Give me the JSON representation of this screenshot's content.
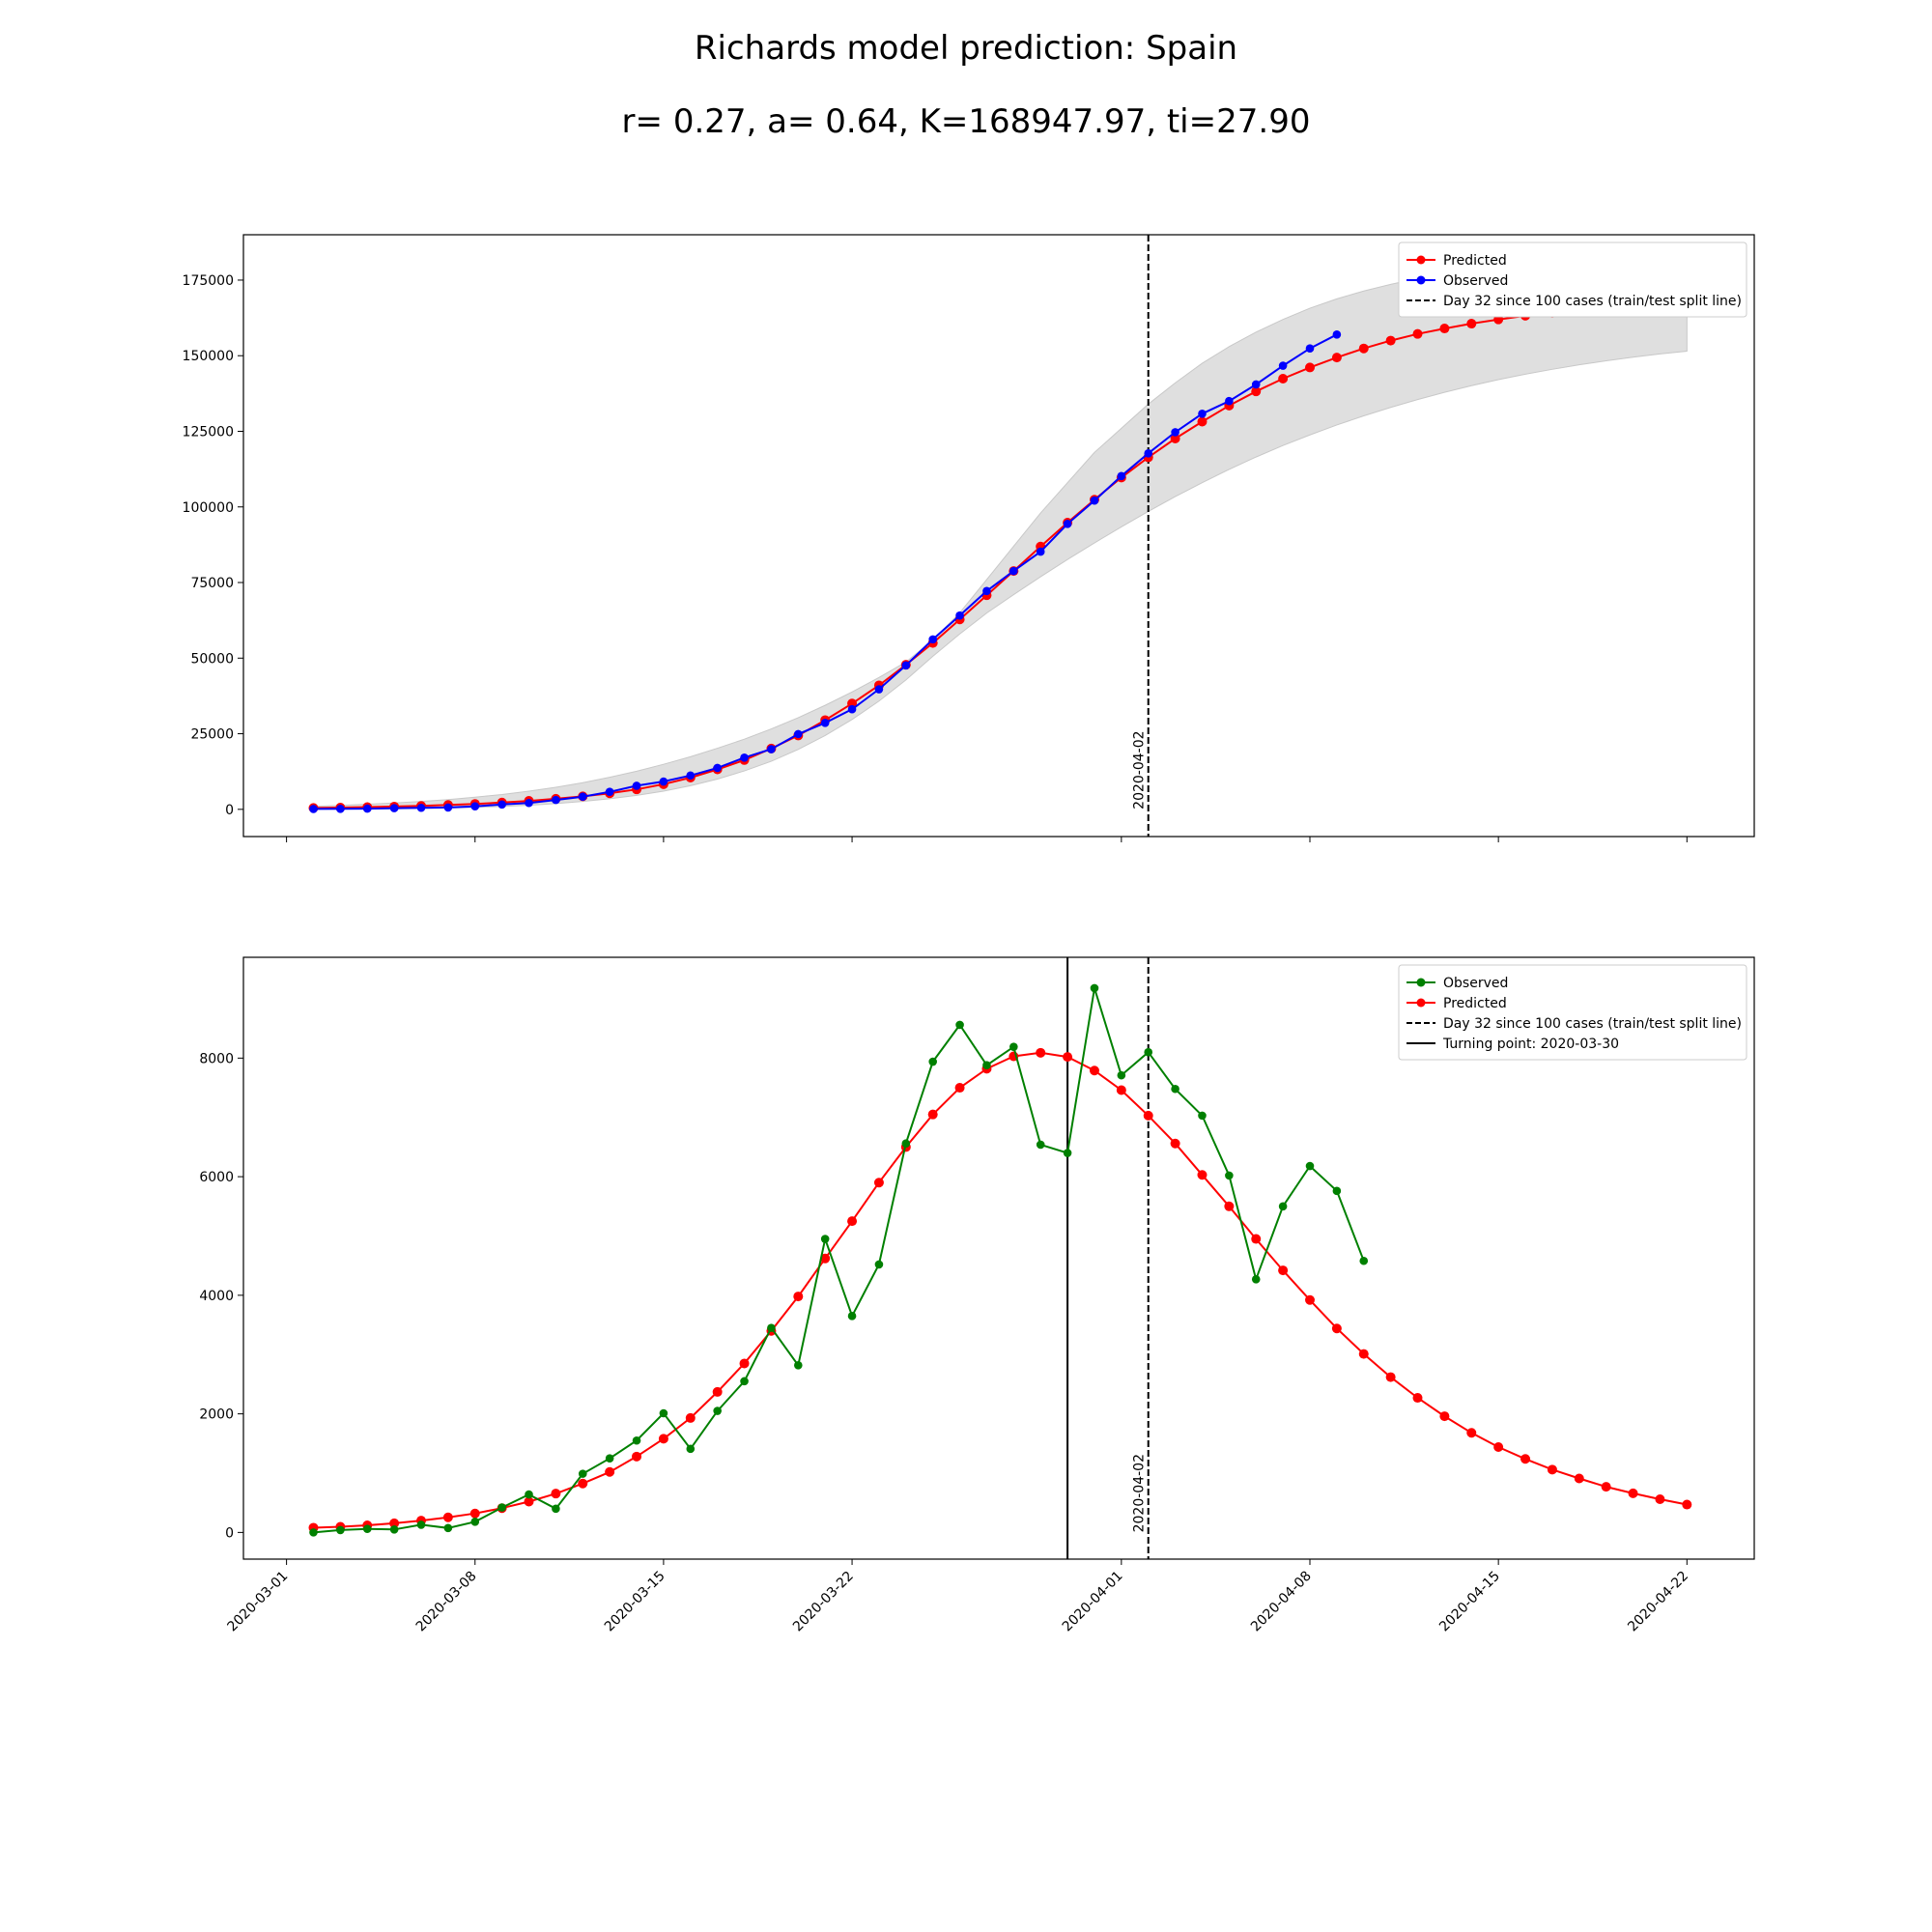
{
  "title": "Richards model prediction: Spain",
  "subtitle": "r= 0.27, a= 0.64, K=168947.97, ti=27.90",
  "colors": {
    "predicted": "#ff0000",
    "observed_top": "#0000ff",
    "observed_bottom": "#008000",
    "band": "#dcdcdc",
    "vline": "#000000"
  },
  "x_axis": {
    "start_date": "2020-03-01",
    "tick_labels": [
      "2020-03-01",
      "2020-03-08",
      "2020-03-15",
      "2020-03-22",
      "2020-04-01",
      "2020-04-08",
      "2020-04-15",
      "2020-04-22"
    ],
    "tick_days": [
      0,
      7,
      14,
      21,
      31,
      38,
      45,
      52
    ],
    "xlim_days": [
      -1.6,
      54.5
    ]
  },
  "chart_data": [
    {
      "type": "line",
      "panel": "top",
      "ylim": [
        -9000,
        190000
      ],
      "yticks": [
        0,
        25000,
        50000,
        75000,
        100000,
        125000,
        150000,
        175000
      ],
      "ytick_labels": [
        "0",
        "25000",
        "50000",
        "75000",
        "100000",
        "125000",
        "150000",
        "175000"
      ],
      "grid": false,
      "legend_position": "top-right",
      "legend": [
        "Predicted",
        "Observed",
        "Day 32 since 100 cases (train/test split line)"
      ],
      "vlines": [
        {
          "day": 32,
          "style": "dashed",
          "label": "2020-04-02"
        }
      ],
      "series": [
        {
          "name": "Predicted",
          "start_day": 1,
          "values": [
            460,
            580,
            730,
            920,
            1150,
            1450,
            1800,
            2250,
            2800,
            3500,
            4300,
            5300,
            6600,
            8300,
            10500,
            13200,
            16300,
            20100,
            24400,
            29500,
            35000,
            41000,
            47800,
            55000,
            62800,
            70800,
            78800,
            86900,
            94800,
            102400,
            109700,
            116400,
            122600,
            128200,
            133500,
            138200,
            142400,
            146100,
            149400,
            152400,
            155000,
            157200,
            159000,
            160600,
            162000,
            163200,
            164200,
            165100,
            165800,
            166400,
            166800,
            167100
          ]
        },
        {
          "name": "Observed",
          "start_day": 1,
          "values": [
            120,
            165,
            230,
            400,
            500,
            600,
            1000,
            1600,
            2100,
            3100,
            4200,
            5800,
            7800,
            9200,
            11200,
            13700,
            17100,
            19900,
            24900,
            28600,
            33100,
            39700,
            47600,
            56200,
            64100,
            72200,
            78800,
            85200,
            94400,
            102100,
            110200,
            117700,
            124700,
            130800,
            135000,
            140500,
            146700,
            152400,
            157000
          ]
        },
        {
          "name": "uncertainty band lower",
          "start_day": 1,
          "values": [
            50,
            80,
            130,
            200,
            300,
            440,
            650,
            950,
            1350,
            1900,
            2600,
            3500,
            4600,
            6000,
            7800,
            10000,
            12700,
            15900,
            19800,
            24400,
            29700,
            35800,
            42800,
            50600,
            58000,
            64900,
            71000,
            76900,
            82600,
            88100,
            93400,
            98500,
            103400,
            108000,
            112400,
            116500,
            120300,
            123800,
            127100,
            130100,
            132900,
            135500,
            137900,
            140100,
            142100,
            143900,
            145500,
            147000,
            148300,
            149500,
            150600,
            151500
          ]
        },
        {
          "name": "uncertainty band upper",
          "start_day": 1,
          "values": [
            1000,
            1300,
            1700,
            2100,
            2600,
            3200,
            4000,
            4900,
            6000,
            7300,
            8800,
            10600,
            12600,
            14900,
            17400,
            20200,
            23200,
            26600,
            30300,
            34400,
            38800,
            43600,
            48700,
            56000,
            65000,
            76000,
            87000,
            98000,
            108000,
            118000,
            126000,
            134000,
            141000,
            147500,
            153000,
            157800,
            162000,
            165700,
            168800,
            171400,
            173600,
            175500,
            177100,
            178400,
            179400,
            180200,
            180800,
            181200,
            181500,
            181700,
            181800,
            181900
          ]
        }
      ]
    },
    {
      "type": "line",
      "panel": "bottom",
      "ylim": [
        -450,
        9700
      ],
      "yticks": [
        0,
        2000,
        4000,
        6000,
        8000
      ],
      "ytick_labels": [
        "0",
        "2000",
        "4000",
        "6000",
        "8000"
      ],
      "grid": false,
      "legend_position": "top-right",
      "legend": [
        "Observed",
        "Predicted",
        "Day 32 since 100 cases (train/test split line)",
        "Turning point: 2020-03-30"
      ],
      "vlines": [
        {
          "day": 32,
          "style": "dashed",
          "label": "2020-04-02"
        },
        {
          "day": 29,
          "style": "solid",
          "label": ""
        }
      ],
      "series": [
        {
          "name": "Observed",
          "start_day": 1,
          "values": [
            0,
            40,
            60,
            50,
            130,
            75,
            180,
            420,
            640,
            400,
            990,
            1250,
            1550,
            2010,
            1410,
            2050,
            2550,
            3450,
            2820,
            4950,
            3650,
            4520,
            6560,
            7940,
            8560,
            7880,
            8190,
            6540,
            6400,
            9180,
            7710,
            8100,
            7480,
            7030,
            6020,
            4270,
            5500,
            6180,
            5760,
            4580
          ]
        },
        {
          "name": "Predicted",
          "start_day": 1,
          "values": [
            80,
            95,
            120,
            155,
            200,
            255,
            320,
            410,
            520,
            655,
            825,
            1020,
            1280,
            1580,
            1930,
            2370,
            2850,
            3400,
            3980,
            4620,
            5250,
            5900,
            6500,
            7050,
            7500,
            7820,
            8030,
            8090,
            8020,
            7790,
            7460,
            7030,
            6560,
            6030,
            5500,
            4950,
            4420,
            3920,
            3440,
            3010,
            2620,
            2270,
            1960,
            1680,
            1440,
            1240,
            1060,
            910,
            770,
            660,
            560,
            470
          ]
        }
      ]
    }
  ]
}
